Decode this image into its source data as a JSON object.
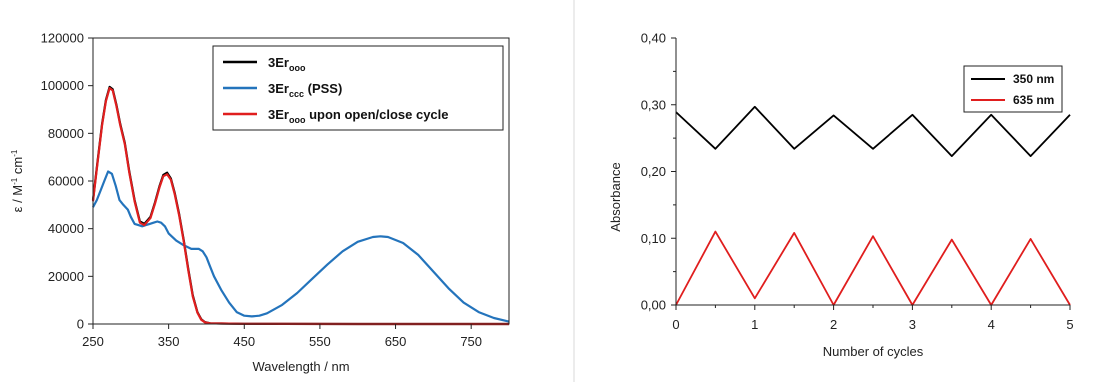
{
  "chart_data": [
    {
      "type": "line",
      "xlabel": "Wavelength / nm",
      "ylabel_parts": [
        "ε / M",
        "-1",
        " cm",
        "-1"
      ],
      "xlim": [
        250,
        800
      ],
      "ylim": [
        0,
        120000
      ],
      "x_ticks": [
        250,
        350,
        450,
        550,
        650,
        750
      ],
      "y_ticks": [
        0,
        20000,
        40000,
        60000,
        80000,
        100000,
        120000
      ],
      "grid": false,
      "legend_position": "top-right",
      "series": [
        {
          "name": "3Er_ooo",
          "legend_main": "3Er",
          "legend_sub": "ooo",
          "legend_suffix": "",
          "color": "#000000",
          "x": [
            250,
            256,
            262,
            267,
            272,
            276,
            281,
            286,
            292,
            298,
            305,
            312,
            318,
            326,
            332,
            338,
            343,
            348,
            353,
            358,
            364,
            370,
            376,
            382,
            388,
            393,
            398,
            405,
            420,
            450,
            500,
            600,
            700,
            800
          ],
          "y": [
            52000,
            68000,
            84000,
            94000,
            99500,
            98500,
            92000,
            84000,
            76000,
            64000,
            52000,
            43000,
            42000,
            45000,
            51000,
            58000,
            62500,
            63500,
            61000,
            55000,
            46000,
            35000,
            23000,
            12000,
            5000,
            2000,
            800,
            300,
            200,
            100,
            50,
            0,
            0,
            0
          ]
        },
        {
          "name": "3Er_ccc (PSS)",
          "legend_main": "3Er",
          "legend_sub": "ccc",
          "legend_suffix": " (PSS)",
          "color": "#2474bc",
          "x": [
            250,
            255,
            260,
            265,
            270,
            275,
            280,
            285,
            290,
            296,
            300,
            305,
            310,
            315,
            320,
            325,
            330,
            335,
            340,
            345,
            350,
            360,
            370,
            380,
            390,
            395,
            400,
            405,
            410,
            420,
            430,
            440,
            450,
            460,
            470,
            480,
            500,
            520,
            540,
            560,
            580,
            600,
            620,
            630,
            640,
            660,
            680,
            700,
            720,
            740,
            760,
            780,
            800
          ],
          "y": [
            49000,
            52000,
            56000,
            60000,
            64000,
            63000,
            58000,
            52000,
            50000,
            48000,
            45000,
            42000,
            41500,
            41000,
            41500,
            42000,
            42500,
            43000,
            42500,
            41000,
            38000,
            35000,
            33000,
            31500,
            31500,
            30500,
            28000,
            24000,
            20000,
            14000,
            9000,
            5000,
            3500,
            3200,
            3500,
            4500,
            8000,
            13000,
            19000,
            25000,
            30500,
            34500,
            36500,
            36800,
            36500,
            34000,
            29000,
            22000,
            15000,
            9000,
            5000,
            2500,
            1000
          ]
        },
        {
          "name": "3Er_ooo upon open/close cycle",
          "legend_main": "3Er",
          "legend_sub": "ooo",
          "legend_suffix": " upon open/close cycle",
          "color": "#e01e1e",
          "x": [
            250,
            256,
            262,
            267,
            272,
            276,
            281,
            286,
            292,
            298,
            305,
            312,
            318,
            326,
            332,
            338,
            343,
            348,
            353,
            358,
            364,
            370,
            376,
            382,
            388,
            393,
            398,
            405,
            420,
            450,
            500,
            600,
            700,
            800
          ],
          "y": [
            51500,
            67500,
            83500,
            93500,
            99000,
            98000,
            91500,
            83500,
            75500,
            63500,
            51500,
            42500,
            41500,
            44500,
            50500,
            57500,
            62000,
            62800,
            60500,
            54500,
            45500,
            34500,
            22500,
            11500,
            4800,
            1800,
            700,
            300,
            200,
            100,
            50,
            0,
            0,
            0
          ]
        }
      ]
    },
    {
      "type": "line",
      "xlabel": "Number  of cycles",
      "ylabel": "Absorbance",
      "xlim": [
        0,
        5
      ],
      "ylim": [
        0,
        0.4
      ],
      "x_ticks": [
        0,
        1,
        2,
        3,
        4,
        5
      ],
      "y_ticks": [
        0,
        0.1,
        0.2,
        0.3,
        0.4
      ],
      "y_tick_labels": [
        "0,00",
        "0,10",
        "0,20",
        "0,30",
        "0,40"
      ],
      "grid": false,
      "legend_position": "top-right",
      "series": [
        {
          "name": "350 nm",
          "color": "#000000",
          "x": [
            0,
            0.5,
            1,
            1.5,
            2,
            2.5,
            3,
            3.5,
            4,
            4.5,
            5
          ],
          "y": [
            0.289,
            0.234,
            0.297,
            0.234,
            0.284,
            0.234,
            0.285,
            0.223,
            0.285,
            0.223,
            0.285
          ]
        },
        {
          "name": "635 nm",
          "color": "#e01e1e",
          "x": [
            0,
            0.5,
            1,
            1.5,
            2,
            2.5,
            3,
            3.5,
            4,
            4.5,
            5
          ],
          "y": [
            0.0,
            0.11,
            0.01,
            0.108,
            0.0,
            0.103,
            0.0,
            0.098,
            0.0,
            0.099,
            0.0
          ]
        }
      ]
    }
  ]
}
